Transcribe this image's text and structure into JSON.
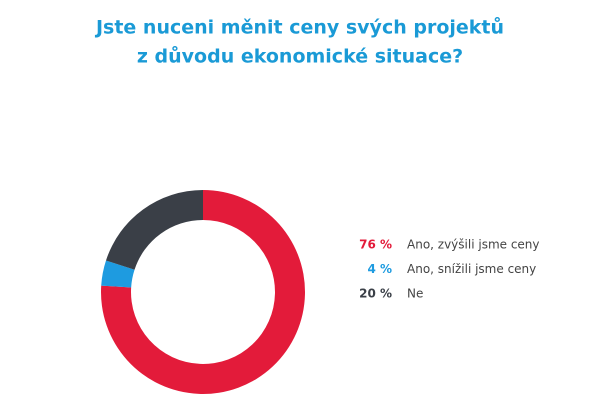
{
  "chart_data": {
    "type": "donut",
    "title": [
      "Jste nuceni měnit ceny svých projektů",
      "z důvodu ekonomické situace?"
    ],
    "series": [
      {
        "name": "Ano, zvýšili jsme ceny",
        "color": "#e31b3a",
        "values": [
          76
        ],
        "value_labels": [
          "76 %"
        ]
      },
      {
        "name": "Ano, snížili jsme ceny",
        "color": "#1e9be0",
        "values": [
          4
        ],
        "value_labels": [
          "4 %"
        ]
      },
      {
        "name": "Ne",
        "color": "#3a3f47",
        "values": [
          20
        ],
        "value_labels": [
          "20 %"
        ]
      }
    ]
  }
}
